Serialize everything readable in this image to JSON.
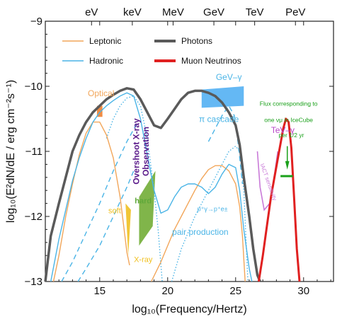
{
  "chart_data": {
    "type": "line",
    "xlabel": "log₁₀(Frequency/Hertz)",
    "ylabel": "log₁₀(E²dN/dE / erg cm⁻²s⁻¹)",
    "xlim": [
      11,
      32.2
    ],
    "ylim": [
      -13,
      -9
    ],
    "x_ticks": [
      15,
      20,
      25,
      30
    ],
    "y_ticks": [
      -9,
      -10,
      -11,
      -12,
      -13
    ],
    "top_axis": {
      "labels": [
        "eV",
        "keV",
        "MeV",
        "GeV",
        "TeV",
        "PeV"
      ],
      "positions": [
        14.4,
        17.4,
        20.4,
        23.4,
        26.4,
        29.4
      ]
    },
    "grid": false,
    "legend": {
      "placement": "top",
      "entries": [
        {
          "label": "Leptonic",
          "color": "#f2a65a",
          "style": "thin"
        },
        {
          "label": "Photons",
          "color": "#5a5a5a",
          "style": "thick"
        },
        {
          "label": "Hadronic",
          "color": "#4ab4e6",
          "style": "thin"
        },
        {
          "label": "Muon Neutrinos",
          "color": "#e02020",
          "style": "thick"
        }
      ]
    },
    "series": [
      {
        "name": "Photons",
        "color": "#5a5a5a",
        "x": [
          11.0,
          11.4,
          12.0,
          12.5,
          13.0,
          13.5,
          14.0,
          14.5,
          15.0,
          15.5,
          16.0,
          16.5,
          17.0,
          17.5,
          18.0,
          18.5,
          19.0,
          19.5,
          20.0,
          20.5,
          21.0,
          21.5,
          22.0,
          22.5,
          23.0,
          23.5,
          24.0,
          24.5,
          25.0,
          25.3,
          25.6,
          26.0,
          26.3,
          26.6,
          26.8
        ],
        "y": [
          -13.0,
          -12.3,
          -11.8,
          -11.4,
          -11.0,
          -10.75,
          -10.55,
          -10.4,
          -10.3,
          -10.2,
          -10.13,
          -10.07,
          -10.03,
          -10.05,
          -10.2,
          -10.4,
          -10.6,
          -10.64,
          -10.5,
          -10.35,
          -10.2,
          -10.1,
          -10.07,
          -10.07,
          -10.1,
          -10.15,
          -10.25,
          -10.4,
          -10.6,
          -10.9,
          -11.4,
          -12.0,
          -12.5,
          -12.9,
          -13.0
        ]
      },
      {
        "name": "Muon Neutrinos",
        "color": "#e02020",
        "x": [
          26.7,
          27.0,
          27.3,
          27.6,
          27.9,
          28.2,
          28.5,
          28.7,
          28.9,
          29.1,
          29.3,
          29.5,
          29.7
        ],
        "y": [
          -13.0,
          -12.6,
          -12.15,
          -11.7,
          -11.35,
          -11.0,
          -10.65,
          -10.5,
          -10.55,
          -10.95,
          -11.7,
          -12.5,
          -13.0
        ]
      },
      {
        "name": "Leptonic synchrotron",
        "color": "#f2a65a",
        "x": [
          11.6,
          12.0,
          12.5,
          13.0,
          13.5,
          14.0,
          14.5,
          15.0,
          15.5,
          16.0,
          16.5,
          16.8,
          17.0,
          17.2
        ],
        "y": [
          -13.0,
          -12.6,
          -12.0,
          -11.5,
          -11.05,
          -10.72,
          -10.55,
          -10.55,
          -10.75,
          -11.1,
          -11.7,
          -12.2,
          -12.55,
          -12.75
        ]
      },
      {
        "name": "Leptonic inverse Compton",
        "color": "#f2a65a",
        "x": [
          18.8,
          19.5,
          20.0,
          20.5,
          21.0,
          21.5,
          22.0,
          22.5,
          23.0,
          23.5,
          24.0,
          24.5,
          25.0,
          25.3,
          25.5,
          25.7
        ],
        "y": [
          -13.0,
          -12.7,
          -12.45,
          -12.2,
          -12.0,
          -11.8,
          -11.6,
          -11.42,
          -11.28,
          -11.22,
          -11.22,
          -11.3,
          -11.5,
          -11.85,
          -12.3,
          -13.0
        ]
      },
      {
        "name": "Hadronic synchrotron",
        "color": "#4ab4e6",
        "x": [
          11.4,
          12.0,
          12.5,
          13.0,
          13.5,
          14.0,
          14.5,
          15.0,
          15.5,
          16.0,
          16.5,
          17.0,
          17.5,
          18.0,
          18.5,
          19.0,
          19.5,
          20.0,
          20.5,
          21.0,
          21.5,
          22.0,
          22.5,
          23.0,
          23.5,
          24.0,
          24.5,
          25.0,
          25.3,
          25.6,
          26.0,
          26.2
        ],
        "y": [
          -13.0,
          -12.35,
          -11.9,
          -11.45,
          -11.1,
          -10.8,
          -10.55,
          -10.4,
          -10.3,
          -10.22,
          -10.15,
          -10.1,
          -10.15,
          -10.5,
          -11.05,
          -11.6,
          -11.95,
          -11.9,
          -11.7,
          -11.55,
          -11.5,
          -11.5,
          -11.55,
          -11.65,
          -11.55,
          -11.35,
          -11.2,
          -11.25,
          -11.6,
          -12.2,
          -12.8,
          -13.0
        ]
      }
    ],
    "dashed_series": [
      {
        "name": "Hadronic (dashed, low)",
        "color": "#4ab4e6",
        "x": [
          12.2,
          13.0,
          14.0,
          15.0,
          16.0,
          17.0,
          17.8
        ],
        "y": [
          -13.0,
          -12.7,
          -12.25,
          -11.8,
          -11.3,
          -10.85,
          -10.55
        ]
      },
      {
        "name": "Hadronic (dashed, high)",
        "color": "#4ab4e6",
        "x": [
          23.0,
          23.5,
          24.0,
          24.5,
          24.9,
          25.2,
          25.5
        ],
        "y": [
          -10.85,
          -10.65,
          -10.45,
          -10.3,
          -10.45,
          -10.9,
          -11.5
        ]
      },
      {
        "name": "Hadronic (dashed, X-ray)",
        "color": "#4ab4e6",
        "x": [
          13.4,
          14.0,
          15.0,
          16.0,
          17.0,
          17.5
        ],
        "y": [
          -13.0,
          -12.8,
          -12.45,
          -12.0,
          -11.55,
          -11.3
        ]
      }
    ],
    "dotted_series": [
      {
        "name": "pi cascade (dotted)",
        "color": "#4ab4e6",
        "x": [
          15.5,
          16.0,
          16.5,
          17.0,
          17.5,
          18.0,
          18.5,
          19.0,
          19.3,
          19.6
        ],
        "y": [
          -10.8,
          -10.5,
          -10.3,
          -10.18,
          -10.15,
          -10.3,
          -10.8,
          -11.6,
          -12.2,
          -13.0
        ]
      },
      {
        "name": "pair production (dotted)",
        "color": "#4ab4e6",
        "x": [
          20.3,
          21.0,
          22.0,
          23.0,
          24.0,
          24.5,
          25.0,
          25.3,
          25.6,
          25.9
        ],
        "y": [
          -13.0,
          -12.5,
          -12.0,
          -11.6,
          -11.2,
          -11.0,
          -10.92,
          -11.0,
          -11.6,
          -13.0
        ]
      }
    ],
    "annotations": [
      {
        "text": "Optical",
        "color": "#f2a65a",
        "x": 15.1,
        "y": -10.15
      },
      {
        "text": "GeV–γ",
        "color": "#4ab4e6",
        "x": 24.5,
        "y": -9.9
      },
      {
        "text": "π cascade",
        "color": "#4ab4e6",
        "x": 22.3,
        "y": -10.55
      },
      {
        "text": "TeV–γ",
        "color": "#b847c8",
        "x": 27.6,
        "y": -10.72
      },
      {
        "text": "IACT sensitivity",
        "color": "#c97ad8",
        "x": 26.8,
        "y": -11.2
      },
      {
        "text": "Flux corresponding to",
        "color": "#1aa01a",
        "x": 28.9,
        "y": -10.3
      },
      {
        "text": "one νμ in IceCube",
        "color": "#1aa01a",
        "x": 28.9,
        "y": -10.55
      },
      {
        "text": "per 1/2 yr",
        "color": "#1aa01a",
        "x": 29.1,
        "y": -10.78
      },
      {
        "text": "Overshoot X-ray",
        "color": "#5a1a8a",
        "x": 17.9,
        "y": -11.0
      },
      {
        "text": "Observation",
        "color": "#5a1a8a",
        "x": 18.6,
        "y": -11.0
      },
      {
        "text": "hard",
        "color": "#5fa83a",
        "x": 18.2,
        "y": -11.8
      },
      {
        "text": "soft",
        "color": "#f0c020",
        "x": 16.1,
        "y": -11.95
      },
      {
        "text": "X-ray",
        "color": "#f0c020",
        "x": 18.2,
        "y": -12.7
      },
      {
        "text": "p⁺γ→p⁺e±",
        "color": "#4ab4e6",
        "x": 23.3,
        "y": -11.92
      },
      {
        "text": "pair production",
        "color": "#4ab4e6",
        "x": 22.4,
        "y": -12.28
      }
    ]
  }
}
